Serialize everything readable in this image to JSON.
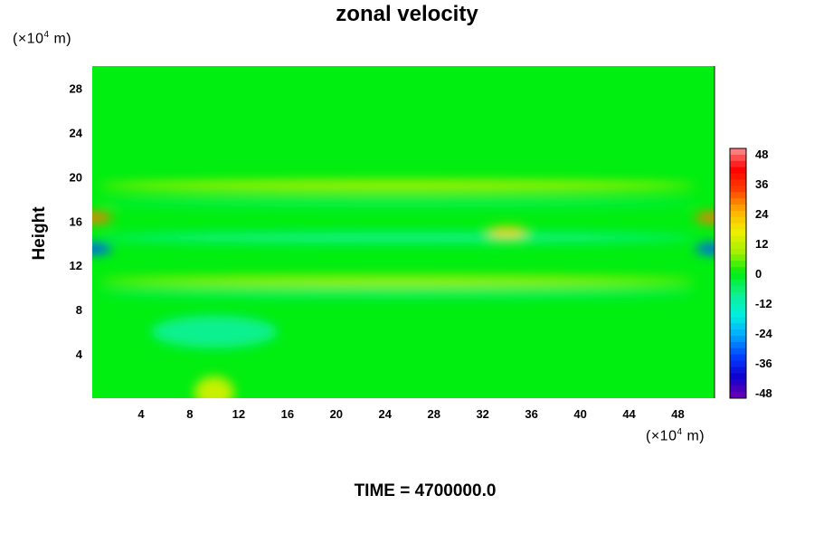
{
  "chart_data": {
    "type": "heatmap",
    "title": "zonal velocity",
    "ylabel": "Height",
    "x_unit": "(×10",
    "x_unit_exp": "4",
    "x_unit_tail": " m)",
    "y_unit": "(×10",
    "y_unit_exp": "4",
    "y_unit_tail": " m)",
    "xlim": [
      0,
      51
    ],
    "ylim": [
      0,
      30
    ],
    "x_ticks": [
      4,
      8,
      12,
      16,
      20,
      24,
      28,
      32,
      36,
      40,
      44,
      48
    ],
    "y_ticks": [
      4,
      8,
      12,
      16,
      20,
      24,
      28
    ],
    "colorbar": {
      "range": [
        -48,
        48
      ],
      "ticks": [
        48,
        36,
        24,
        12,
        0,
        -12,
        -24,
        -36,
        -48
      ]
    },
    "features": [
      {
        "x": 25,
        "y": 19.2,
        "value": 10
      },
      {
        "x": 25,
        "y": 17.7,
        "value": -4
      },
      {
        "x": 25,
        "y": 14.5,
        "value": -8
      },
      {
        "x": 25,
        "y": 10.6,
        "value": 8
      },
      {
        "x": 25,
        "y": 9.5,
        "value": -5
      },
      {
        "x": 10,
        "y": 6.0,
        "value": -8
      },
      {
        "x": 10,
        "y": 0.5,
        "value": 12
      },
      {
        "x": 34,
        "y": 15.0,
        "value": 20
      },
      {
        "x": 51,
        "y": 16.3,
        "value": 28
      },
      {
        "x": 51,
        "y": 13.5,
        "value": -30
      },
      {
        "x": 0,
        "y": 16.3,
        "value": 28
      },
      {
        "x": 0,
        "y": 13.5,
        "value": -30
      }
    ]
  },
  "footer": {
    "time_label": "TIME = 4700000.0"
  }
}
